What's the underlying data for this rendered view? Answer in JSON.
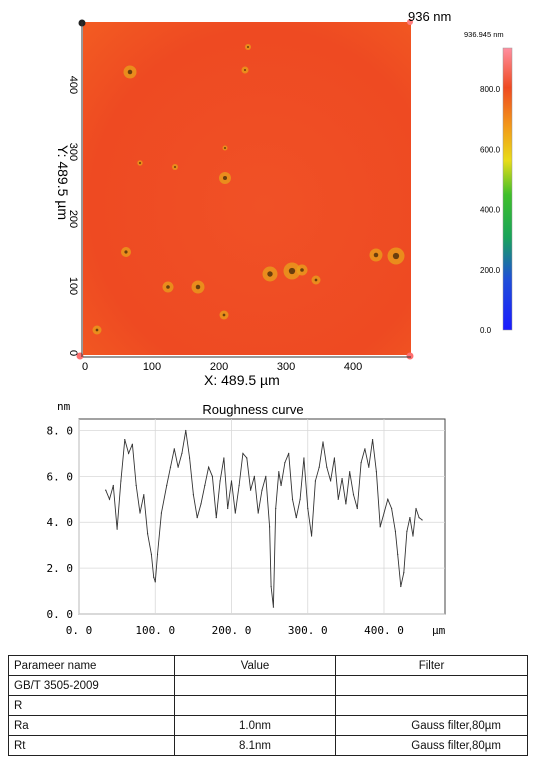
{
  "surface_map": {
    "z_max_label": "936 nm",
    "x_axis_label": "X: 489.5 µm",
    "y_axis_label": "Y: 489.5 µm",
    "x_ticks": [
      "0",
      "100",
      "200",
      "300",
      "400"
    ],
    "y_ticks": [
      "0",
      "100",
      "200",
      "300",
      "400"
    ],
    "colorbar_max_label": "936.945 nm",
    "colorbar_ticks": [
      "800.0",
      "600.0",
      "400.0",
      "200.0",
      "0.0"
    ],
    "colors": {
      "surface": "#ef4a22",
      "surface_light": "#f6701f",
      "pit": "#e8a21b"
    }
  },
  "chart_data": {
    "type": "line",
    "title": "Roughness curve",
    "xlabel": "µm",
    "ylabel": "nm",
    "xlim": [
      0,
      480
    ],
    "ylim": [
      0,
      8.5
    ],
    "x_ticks": [
      "0. 0",
      "100. 0",
      "200. 0",
      "300. 0",
      "400. 0"
    ],
    "y_ticks": [
      "0. 0",
      "2. 0",
      "4. 0",
      "6. 0",
      "8. 0"
    ],
    "grid": true,
    "x": [
      35,
      40,
      45,
      50,
      55,
      60,
      65,
      70,
      75,
      80,
      85,
      90,
      95,
      98,
      100,
      103,
      108,
      115,
      120,
      125,
      130,
      135,
      140,
      145,
      150,
      155,
      160,
      165,
      170,
      175,
      180,
      185,
      190,
      195,
      200,
      205,
      210,
      215,
      220,
      225,
      230,
      235,
      240,
      245,
      250,
      252,
      255,
      258,
      262,
      265,
      270,
      275,
      280,
      285,
      290,
      295,
      300,
      305,
      310,
      315,
      320,
      325,
      330,
      335,
      340,
      345,
      350,
      355,
      360,
      365,
      370,
      375,
      380,
      385,
      390,
      395,
      400,
      405,
      410,
      415,
      418,
      422,
      426,
      430,
      434,
      438,
      442,
      446,
      450
    ],
    "values": [
      5.4,
      5.0,
      5.6,
      3.7,
      5.8,
      7.6,
      7.0,
      7.4,
      5.6,
      4.4,
      5.2,
      3.5,
      2.6,
      1.6,
      1.4,
      2.6,
      4.4,
      5.6,
      6.4,
      7.2,
      6.4,
      7.0,
      8.0,
      6.8,
      5.2,
      4.2,
      4.8,
      5.6,
      6.4,
      6.0,
      4.2,
      5.8,
      6.8,
      4.6,
      5.8,
      4.4,
      5.6,
      7.0,
      6.8,
      5.4,
      6.0,
      4.4,
      5.4,
      6.0,
      3.8,
      1.2,
      0.3,
      4.6,
      6.2,
      5.6,
      6.6,
      7.0,
      5.0,
      4.2,
      5.0,
      6.8,
      4.6,
      3.4,
      5.8,
      6.4,
      7.5,
      6.4,
      5.8,
      6.8,
      5.0,
      5.9,
      4.8,
      6.2,
      5.2,
      4.6,
      6.6,
      7.2,
      6.4,
      7.6,
      6.2,
      3.8,
      4.4,
      5.0,
      4.6,
      3.6,
      2.6,
      1.2,
      1.8,
      3.6,
      4.2,
      3.4,
      4.6,
      4.2,
      4.1
    ]
  },
  "params_table": {
    "headers": [
      "Parameer name",
      "Value",
      "Filter"
    ],
    "rows": [
      [
        "GB/T 3505-2009",
        "",
        ""
      ],
      [
        "R",
        "",
        ""
      ],
      [
        "Ra",
        "1.0nm",
        "Gauss filter,80µm"
      ],
      [
        "Rt",
        "8.1nm",
        "Gauss filter,80µm"
      ]
    ]
  }
}
